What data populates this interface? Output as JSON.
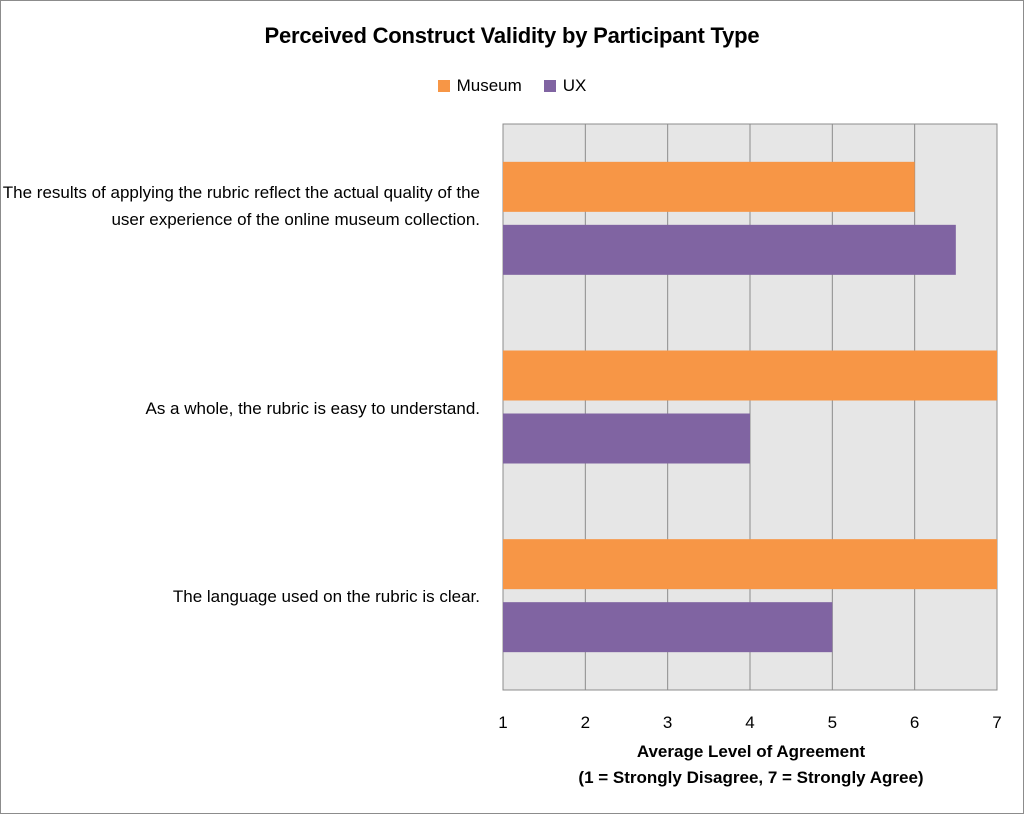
{
  "chart_data": {
    "type": "bar",
    "orientation": "horizontal",
    "title": "Perceived Construct Validity by Participant Type",
    "categories": [
      "The results of applying the rubric reflect the actual quality of the user experience of the online museum collection.",
      "As a whole, the rubric is easy to understand.",
      "The language used on the rubric is clear."
    ],
    "series": [
      {
        "name": "Museum",
        "color": "#f79646",
        "values": [
          6,
          7,
          7
        ]
      },
      {
        "name": "UX",
        "color": "#8064a2",
        "values": [
          6.5,
          4,
          5
        ]
      }
    ],
    "xlabel": "Average Level of Agreement",
    "xlabel_sub": "(1 = Strongly Disagree, 7 = Strongly Agree)",
    "xlim": [
      1,
      7
    ],
    "xticks": [
      "1",
      "2",
      "3",
      "4",
      "5",
      "6",
      "7"
    ],
    "grid": true,
    "legend_position": "top"
  }
}
